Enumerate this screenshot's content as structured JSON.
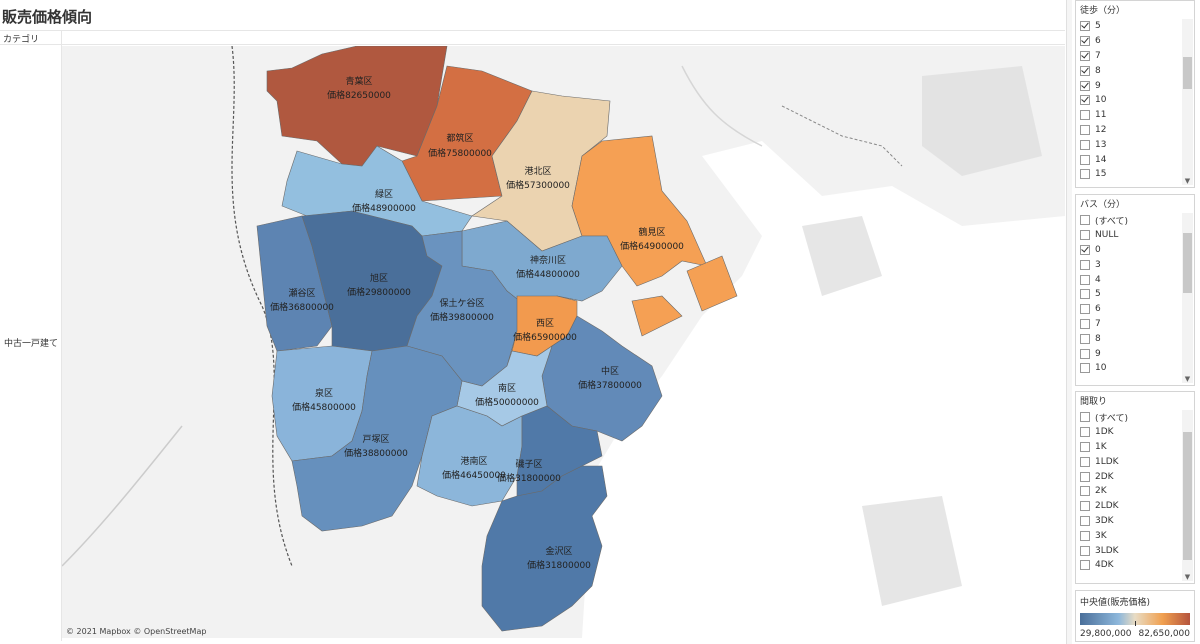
{
  "title": "販売価格傾向",
  "column_header": "カテゴリ",
  "row_label": "中古一戸建て",
  "attribution": "© 2021 Mapbox © OpenStreetMap",
  "colors": {
    "min": "#4a6f9a",
    "mid": "#e8dcc4",
    "max": "#b5543d"
  },
  "districts": [
    {
      "name": "青葉区",
      "price_label": "価格82650000",
      "value": 82650000,
      "color": "#b0583f"
    },
    {
      "name": "都筑区",
      "price_label": "価格75800000",
      "value": 75800000,
      "color": "#d36f43"
    },
    {
      "name": "港北区",
      "price_label": "価格57300000",
      "value": 57300000,
      "color": "#ebd3b0"
    },
    {
      "name": "鶴見区",
      "price_label": "価格64900000",
      "value": 64900000,
      "color": "#f5a054"
    },
    {
      "name": "緑区",
      "price_label": "価格48900000",
      "value": 48900000,
      "color": "#93bfdf"
    },
    {
      "name": "神奈川区",
      "price_label": "価格44800000",
      "value": 44800000,
      "color": "#7ea9cf"
    },
    {
      "name": "瀬谷区",
      "price_label": "価格36800000",
      "value": 36800000,
      "color": "#5d84b2"
    },
    {
      "name": "旭区",
      "price_label": "価格29800000",
      "value": 29800000,
      "color": "#4a6f9a"
    },
    {
      "name": "保土ケ谷区",
      "price_label": "価格39800000",
      "value": 39800000,
      "color": "#6a93bf"
    },
    {
      "name": "西区",
      "price_label": "価格65900000",
      "value": 65900000,
      "color": "#f29a4e"
    },
    {
      "name": "中区",
      "price_label": "価格37800000",
      "value": 37800000,
      "color": "#628ab8"
    },
    {
      "name": "泉区",
      "price_label": "価格45800000",
      "value": 45800000,
      "color": "#8ab4da"
    },
    {
      "name": "南区",
      "price_label": "価格50000000",
      "value": 50000000,
      "color": "#a6c9e6"
    },
    {
      "name": "戸塚区",
      "price_label": "価格38800000",
      "value": 38800000,
      "color": "#6690bd"
    },
    {
      "name": "港南区",
      "price_label": "価格46450000",
      "value": 46450000,
      "color": "#8cb6da"
    },
    {
      "name": "磯子区",
      "price_label": "価格31800000",
      "value": 31800000,
      "color": "#5079a8"
    },
    {
      "name": "金沢区",
      "price_label": "価格31800000",
      "value": 31800000,
      "color": "#5079a8"
    }
  ],
  "filters": {
    "walk": {
      "title": "徒歩（分）",
      "items": [
        {
          "label": "5",
          "checked": true
        },
        {
          "label": "6",
          "checked": true
        },
        {
          "label": "7",
          "checked": true
        },
        {
          "label": "8",
          "checked": true
        },
        {
          "label": "9",
          "checked": true
        },
        {
          "label": "10",
          "checked": true
        },
        {
          "label": "11",
          "checked": false
        },
        {
          "label": "12",
          "checked": false
        },
        {
          "label": "13",
          "checked": false
        },
        {
          "label": "14",
          "checked": false
        },
        {
          "label": "15",
          "checked": false
        }
      ]
    },
    "bus": {
      "title": "バス（分）",
      "items": [
        {
          "label": "(すべて)",
          "checked": false
        },
        {
          "label": "NULL",
          "checked": false
        },
        {
          "label": "0",
          "checked": true
        },
        {
          "label": "3",
          "checked": false
        },
        {
          "label": "4",
          "checked": false
        },
        {
          "label": "5",
          "checked": false
        },
        {
          "label": "6",
          "checked": false
        },
        {
          "label": "7",
          "checked": false
        },
        {
          "label": "8",
          "checked": false
        },
        {
          "label": "9",
          "checked": false
        },
        {
          "label": "10",
          "checked": false
        }
      ]
    },
    "layout": {
      "title": "間取り",
      "items": [
        {
          "label": "(すべて)",
          "checked": false
        },
        {
          "label": "1DK",
          "checked": false
        },
        {
          "label": "1K",
          "checked": false
        },
        {
          "label": "1LDK",
          "checked": false
        },
        {
          "label": "2DK",
          "checked": false
        },
        {
          "label": "2K",
          "checked": false
        },
        {
          "label": "2LDK",
          "checked": false
        },
        {
          "label": "3DK",
          "checked": false
        },
        {
          "label": "3K",
          "checked": false
        },
        {
          "label": "3LDK",
          "checked": false
        },
        {
          "label": "4DK",
          "checked": false
        }
      ]
    }
  },
  "legend": {
    "title": "中央値(販売価格)",
    "min_label": "29,800,000",
    "max_label": "82,650,000",
    "min": 29800000,
    "max": 82650000
  }
}
